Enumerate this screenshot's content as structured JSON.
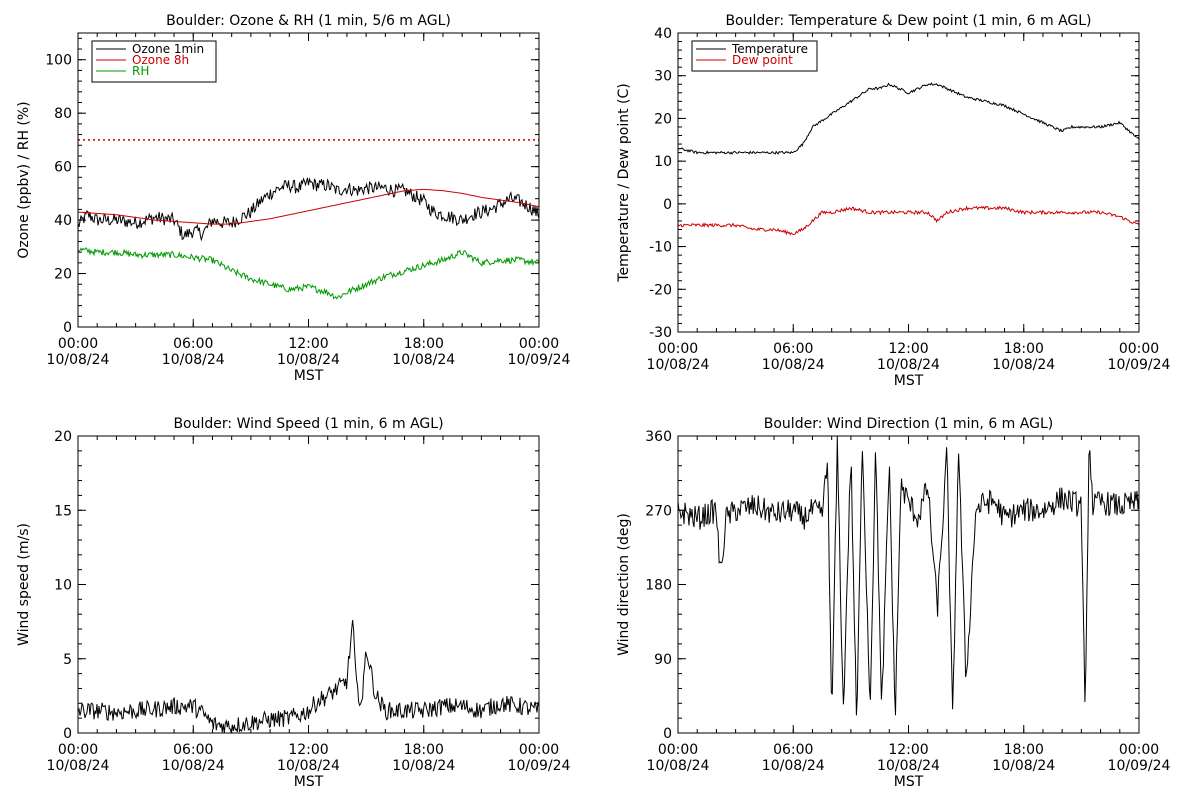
{
  "chart_data": [
    {
      "type": "line",
      "title": "Boulder: Ozone & RH (1 min, 5/6 m AGL)",
      "ylabel": "Ozone (ppbv) / RH (%)",
      "xlabel": "MST",
      "xlim": [
        0,
        24
      ],
      "ylim": [
        0,
        110
      ],
      "yticks": [
        0,
        20,
        40,
        60,
        80,
        100
      ],
      "xticks": [
        {
          "x": 0,
          "time": "00:00",
          "date": "10/08/24"
        },
        {
          "x": 6,
          "time": "06:00",
          "date": "10/08/24"
        },
        {
          "x": 12,
          "time": "12:00",
          "date": "10/08/24"
        },
        {
          "x": 18,
          "time": "18:00",
          "date": "10/08/24"
        },
        {
          "x": 24,
          "time": "00:00",
          "date": "10/09/24"
        }
      ],
      "legend": {
        "placement": "top-left",
        "entries": [
          {
            "name": "Ozone 1min",
            "color": "#000000"
          },
          {
            "name": "Ozone 8h",
            "color": "#cc0000"
          },
          {
            "name": "RH",
            "color": "#009900"
          }
        ]
      },
      "reference_lines": [
        {
          "y": 70,
          "color": "#cc0000",
          "style": "dotted"
        }
      ],
      "series": [
        {
          "name": "Ozone 1min",
          "color": "#000000",
          "noise": 2.5,
          "x": [
            0,
            0.5,
            1,
            2,
            3,
            4,
            5,
            5.5,
            6,
            6.5,
            7,
            7.5,
            8,
            8.5,
            9,
            9.5,
            10,
            10.5,
            11,
            11.5,
            12,
            12.5,
            13,
            13.5,
            14,
            14.5,
            15,
            15.5,
            16,
            16.5,
            17,
            17.5,
            18,
            18.5,
            19,
            19.5,
            20,
            20.5,
            21,
            21.5,
            22,
            22.5,
            23,
            23.5,
            24
          ],
          "y": [
            38,
            42,
            40,
            40,
            39,
            41,
            40,
            34,
            36,
            35,
            40,
            39,
            39,
            41,
            43,
            47,
            50,
            52,
            53,
            52,
            54,
            53,
            53,
            51,
            52,
            51,
            52,
            52,
            52,
            51,
            51,
            49,
            47,
            43,
            42,
            41,
            40,
            42,
            43,
            44,
            46,
            48,
            47,
            45,
            42
          ]
        },
        {
          "name": "Ozone 8h",
          "color": "#cc0000",
          "noise": 0,
          "x": [
            0,
            2,
            4,
            6,
            7,
            8,
            9,
            10,
            11,
            12,
            13,
            14,
            15,
            16,
            17,
            18,
            19,
            20,
            21,
            22,
            23,
            24
          ],
          "y": [
            43,
            42,
            40,
            39,
            38.5,
            38.5,
            39.5,
            40.5,
            42,
            43.5,
            45,
            46.5,
            48,
            49.5,
            51,
            51.5,
            51,
            50,
            48.5,
            47.5,
            46.5,
            45
          ]
        },
        {
          "name": "RH",
          "color": "#009900",
          "noise": 1.2,
          "x": [
            0,
            1,
            2,
            3,
            4,
            5,
            6,
            7,
            8,
            9,
            10,
            11,
            12,
            13,
            13.5,
            14,
            15,
            16,
            17,
            18,
            19,
            20,
            21,
            22,
            23,
            24
          ],
          "y": [
            29,
            28,
            28,
            27,
            27,
            27,
            26,
            25,
            21,
            18,
            16,
            14,
            15,
            13,
            11,
            13,
            16,
            19,
            21,
            23,
            25,
            28,
            24,
            25,
            25,
            24
          ]
        }
      ]
    },
    {
      "type": "line",
      "title": "Boulder: Temperature & Dew point (1 min, 6 m AGL)",
      "ylabel": "Temperature / Dew point (C)",
      "xlabel": "MST",
      "xlim": [
        0,
        24
      ],
      "ylim": [
        -30,
        40
      ],
      "yticks": [
        -30,
        -20,
        -10,
        0,
        10,
        20,
        30,
        40
      ],
      "xticks": [
        {
          "x": 0,
          "time": "00:00",
          "date": "10/08/24"
        },
        {
          "x": 6,
          "time": "06:00",
          "date": "10/08/24"
        },
        {
          "x": 12,
          "time": "12:00",
          "date": "10/08/24"
        },
        {
          "x": 18,
          "time": "18:00",
          "date": "10/08/24"
        },
        {
          "x": 24,
          "time": "00:00",
          "date": "10/09/24"
        }
      ],
      "legend": {
        "placement": "top-left",
        "entries": [
          {
            "name": "Temperature",
            "color": "#000000"
          },
          {
            "name": "Dew point",
            "color": "#cc0000"
          }
        ]
      },
      "reference_lines": [],
      "series": [
        {
          "name": "Temperature",
          "color": "#000000",
          "noise": 0.3,
          "x": [
            0,
            1,
            2,
            3,
            4,
            5,
            6,
            6.5,
            7,
            8,
            9,
            10,
            10.5,
            11,
            11.5,
            12,
            12.5,
            13,
            13.5,
            14,
            15,
            16,
            17,
            18,
            19,
            20,
            20.5,
            21,
            22,
            23,
            24
          ],
          "y": [
            13,
            12,
            12,
            12,
            12,
            12,
            12,
            14,
            18,
            21,
            24,
            27,
            27,
            28,
            27,
            26,
            27,
            28,
            28,
            27,
            25,
            24,
            23,
            21,
            19,
            17,
            18,
            18,
            18,
            19,
            15
          ]
        },
        {
          "name": "Dew point",
          "color": "#cc0000",
          "noise": 0.4,
          "x": [
            0,
            1,
            2,
            3,
            4,
            5,
            6,
            6.5,
            7,
            7.5,
            8,
            9,
            10,
            11,
            12,
            13,
            13.5,
            14,
            15,
            16,
            17,
            18,
            19,
            20,
            21,
            22,
            23,
            24
          ],
          "y": [
            -5,
            -5,
            -5,
            -5,
            -6,
            -6,
            -7,
            -6,
            -4,
            -2,
            -2,
            -1,
            -2,
            -2,
            -2,
            -2,
            -4,
            -2,
            -1,
            -1,
            -1,
            -2,
            -2,
            -2,
            -2,
            -2,
            -3,
            -5
          ]
        }
      ]
    },
    {
      "type": "line",
      "title": "Boulder: Wind Speed (1 min, 6 m AGL)",
      "ylabel": "Wind speed (m/s)",
      "xlabel": "MST",
      "xlim": [
        0,
        24
      ],
      "ylim": [
        0,
        20
      ],
      "yticks": [
        0,
        5,
        10,
        15,
        20
      ],
      "xticks": [
        {
          "x": 0,
          "time": "00:00",
          "date": "10/08/24"
        },
        {
          "x": 6,
          "time": "06:00",
          "date": "10/08/24"
        },
        {
          "x": 12,
          "time": "12:00",
          "date": "10/08/24"
        },
        {
          "x": 18,
          "time": "18:00",
          "date": "10/08/24"
        },
        {
          "x": 24,
          "time": "00:00",
          "date": "10/09/24"
        }
      ],
      "legend": null,
      "reference_lines": [],
      "series": [
        {
          "name": "",
          "color": "#000000",
          "noise": 0.6,
          "x": [
            0,
            1,
            2,
            3,
            4,
            5,
            6,
            6.5,
            7,
            7.5,
            8,
            9,
            10,
            11,
            11.5,
            12,
            12.5,
            13,
            13.5,
            14,
            14.3,
            14.5,
            14.8,
            15,
            15.5,
            16,
            17,
            18,
            19,
            20,
            21,
            22,
            23,
            24
          ],
          "y": [
            1.5,
            1.5,
            1.4,
            1.5,
            1.6,
            1.8,
            1.8,
            1.3,
            0.6,
            0.5,
            0.5,
            0.7,
            0.9,
            1.0,
            1.2,
            1.5,
            2.2,
            2.5,
            3.0,
            3.5,
            7.5,
            3.0,
            2.0,
            5.8,
            2.5,
            1.5,
            1.5,
            1.5,
            1.8,
            1.8,
            1.5,
            2.0,
            1.8,
            1.5
          ]
        }
      ]
    },
    {
      "type": "line",
      "title": "Boulder: Wind Direction (1 min, 6 m AGL)",
      "ylabel": "Wind direction (deg)",
      "xlabel": "MST",
      "xlim": [
        0,
        24
      ],
      "ylim": [
        0,
        360
      ],
      "yticks": [
        0,
        90,
        180,
        270,
        360
      ],
      "xticks": [
        {
          "x": 0,
          "time": "00:00",
          "date": "10/08/24"
        },
        {
          "x": 6,
          "time": "06:00",
          "date": "10/08/24"
        },
        {
          "x": 12,
          "time": "12:00",
          "date": "10/08/24"
        },
        {
          "x": 18,
          "time": "18:00",
          "date": "10/08/24"
        },
        {
          "x": 24,
          "time": "00:00",
          "date": "10/09/24"
        }
      ],
      "legend": null,
      "reference_lines": [],
      "series": [
        {
          "name": "",
          "color": "#000000",
          "noise": 15,
          "x": [
            0,
            1,
            2,
            2.2,
            2.5,
            3,
            4,
            5,
            6,
            6.5,
            7,
            7.5,
            7.8,
            8,
            8.3,
            8.6,
            9,
            9.3,
            9.6,
            10,
            10.3,
            10.6,
            11,
            11.3,
            11.6,
            12,
            12.5,
            13,
            13.5,
            14,
            14.3,
            14.6,
            15,
            15.5,
            16,
            16.5,
            17,
            18,
            19,
            20,
            20.5,
            21,
            21.2,
            21.4,
            21.6,
            22,
            23,
            24
          ],
          "y": [
            270,
            260,
            270,
            190,
            260,
            270,
            275,
            265,
            270,
            260,
            270,
            265,
            330,
            10,
            350,
            20,
            340,
            5,
            355,
            30,
            350,
            20,
            330,
            15,
            300,
            280,
            260,
            300,
            150,
            340,
            10,
            350,
            60,
            270,
            280,
            280,
            260,
            270,
            270,
            285,
            280,
            275,
            5,
            360,
            275,
            280,
            275,
            280
          ]
        }
      ]
    }
  ]
}
